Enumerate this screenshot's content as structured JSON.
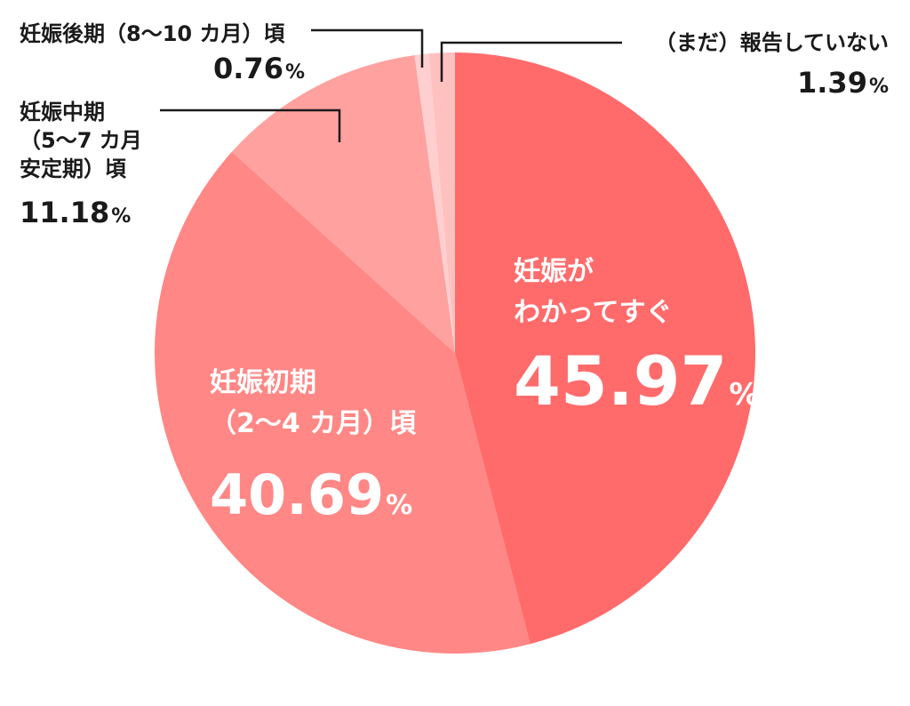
{
  "chart_data": {
    "type": "pie",
    "slices": [
      {
        "label_lines": [
          "妊娠が",
          "わかってすぐ"
        ],
        "value": 45.97,
        "value_text": "45.97",
        "unit": "%",
        "color": "#ff6b6b"
      },
      {
        "label_lines": [
          "妊娠初期",
          "（2〜4 カ月）頃"
        ],
        "value": 40.69,
        "value_text": "40.69",
        "unit": "%",
        "color": "#ff8785"
      },
      {
        "label_lines": [
          "妊娠中期",
          "（5〜7 カ月",
          "安定期）頃"
        ],
        "value": 11.18,
        "value_text": "11.18",
        "unit": "%",
        "color": "#ffa19e"
      },
      {
        "label_lines": [
          "妊娠後期（8〜10 カ月）頃"
        ],
        "value": 0.76,
        "value_text": "0.76",
        "unit": "%",
        "color": "#ffcfcf"
      },
      {
        "label_lines": [
          "（まだ）報告していない"
        ],
        "value": 1.39,
        "value_text": "1.39",
        "unit": "%",
        "color": "#ffc1c0"
      }
    ],
    "start": "top (12 o'clock)",
    "direction": "clockwise",
    "legend": "none (labels on/next to slices)"
  }
}
